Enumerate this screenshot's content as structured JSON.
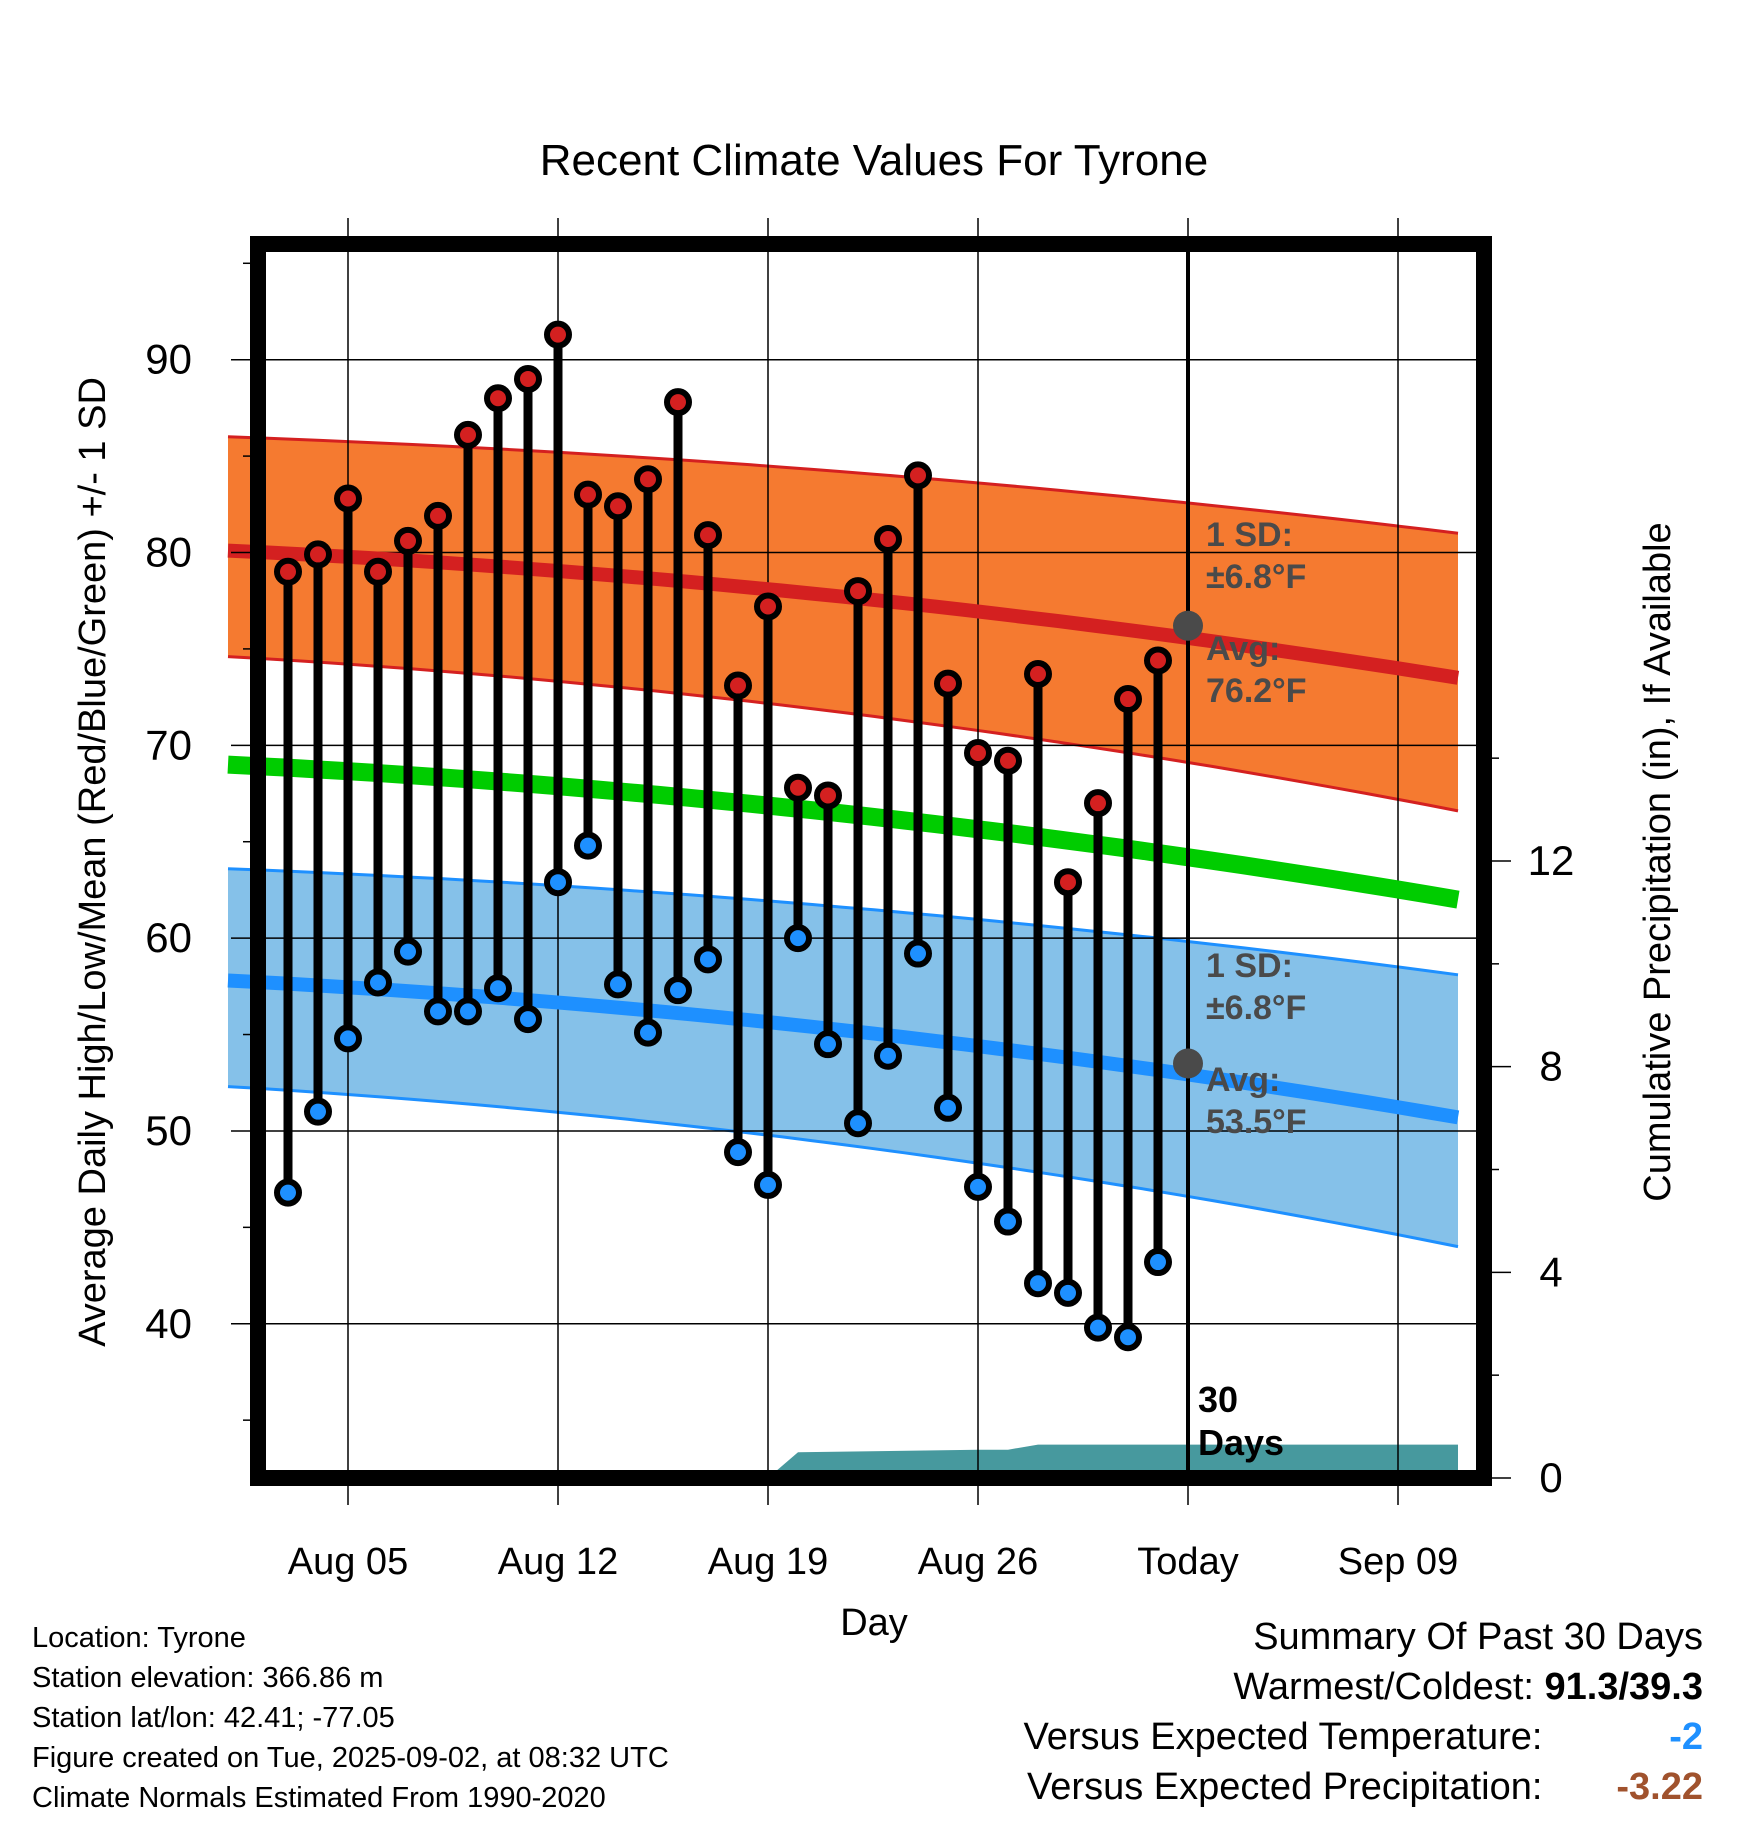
{
  "chart_data": {
    "type": "line",
    "title": "Recent Climate Values For Tyrone",
    "xlabel": "Day",
    "ylabel": "Average Daily High/Low/Mean (Red/Blue/Green) +/- 1 SD",
    "y2label": "Cumulative Precipitation (in), If Available",
    "ylim": [
      32,
      96
    ],
    "y2lim": [
      0,
      24
    ],
    "yticks": [
      40,
      50,
      60,
      70,
      80,
      90
    ],
    "y2ticks": [
      0,
      4,
      8,
      12
    ],
    "x_range": [
      "Aug 01",
      "Sep 11"
    ],
    "xtick_labels": [
      "Aug 05",
      "Aug 12",
      "Aug 19",
      "Aug 26",
      "Today",
      "Sep 09"
    ],
    "today_marker": {
      "date": "Sep 02",
      "label_line1": "30",
      "label_line2": "Days"
    },
    "grid": true,
    "days": [
      "Aug 03",
      "Aug 04",
      "Aug 05",
      "Aug 06",
      "Aug 07",
      "Aug 08",
      "Aug 09",
      "Aug 10",
      "Aug 11",
      "Aug 12",
      "Aug 13",
      "Aug 14",
      "Aug 15",
      "Aug 16",
      "Aug 17",
      "Aug 18",
      "Aug 19",
      "Aug 20",
      "Aug 21",
      "Aug 22",
      "Aug 23",
      "Aug 24",
      "Aug 25",
      "Aug 26",
      "Aug 27",
      "Aug 28",
      "Aug 29",
      "Aug 30",
      "Aug 31",
      "Sep 01"
    ],
    "series": [
      {
        "name": "Daily High",
        "color": "#d42020",
        "values": [
          79.0,
          79.9,
          82.8,
          79.0,
          80.6,
          81.9,
          86.1,
          88.0,
          89.0,
          91.3,
          83.0,
          82.4,
          83.8,
          87.8,
          80.9,
          73.1,
          77.2,
          67.8,
          67.4,
          78.0,
          80.7,
          84.0,
          73.2,
          69.6,
          69.2,
          73.7,
          62.9,
          67.0,
          72.4,
          74.4
        ]
      },
      {
        "name": "Daily Low",
        "color": "#1e90ff",
        "values": [
          46.8,
          51.0,
          54.8,
          57.7,
          59.3,
          56.2,
          56.2,
          57.4,
          55.8,
          62.9,
          64.8,
          57.6,
          55.1,
          57.3,
          58.9,
          48.9,
          47.2,
          60.0,
          54.5,
          50.4,
          53.9,
          59.2,
          51.2,
          47.1,
          45.3,
          42.1,
          41.6,
          39.8,
          39.3,
          43.2
        ]
      }
    ],
    "normals": {
      "mean_green": {
        "color": "#00cc00",
        "start": 69.0,
        "end": 62.0
      },
      "high_avg": {
        "color": "#d42020",
        "start": 80.1,
        "today": 76.2,
        "end": 73.5
      },
      "high_band": {
        "color": "#f57a30",
        "upper_start": 86.0,
        "upper_end": 81.0,
        "lower_start": 74.6,
        "lower_end": 66.6
      },
      "low_avg": {
        "color": "#1e90ff",
        "start": 57.8,
        "today": 53.5,
        "end": 50.7
      },
      "low_band": {
        "color": "#85c1e9",
        "upper_start": 63.6,
        "upper_end": 58.1,
        "lower_start": 52.3,
        "lower_end": 44.0
      }
    },
    "precipitation": {
      "color": "#47999e",
      "days": [
        "Aug 19",
        "Aug 20",
        "Aug 26",
        "Aug 27",
        "Aug 28",
        "Sep 11"
      ],
      "values": [
        0.0,
        0.5,
        0.55,
        0.55,
        0.65,
        0.65
      ]
    },
    "annotations": {
      "high_sd_line1": "1 SD:",
      "high_sd_line2": "±6.8°F",
      "high_avg_line1": "Avg:",
      "high_avg_line2": "76.2°F",
      "low_sd_line1": "1 SD:",
      "low_sd_line2": "±6.8°F",
      "low_avg_line1": "Avg:",
      "low_avg_line2": "53.5°F"
    }
  },
  "info": {
    "location": "Location: Tyrone",
    "elevation": "Station elevation: 366.86 m",
    "latlon": "Station lat/lon: 42.41; -77.05",
    "created": "Figure created on Tue, 2025-09-02, at 08:32 UTC",
    "normals": "Climate Normals Estimated From 1990-2020"
  },
  "summary": {
    "title": "Summary Of Past 30 Days",
    "warmest_coldest_label": "Warmest/Coldest:",
    "warmest_coldest_value": "91.3/39.3",
    "temp_label": "Versus Expected Temperature:",
    "temp_value": "-2",
    "temp_color": "#1e90ff",
    "precip_label": "Versus Expected Precipitation:",
    "precip_value": "-3.22",
    "precip_color": "#a0522d"
  }
}
